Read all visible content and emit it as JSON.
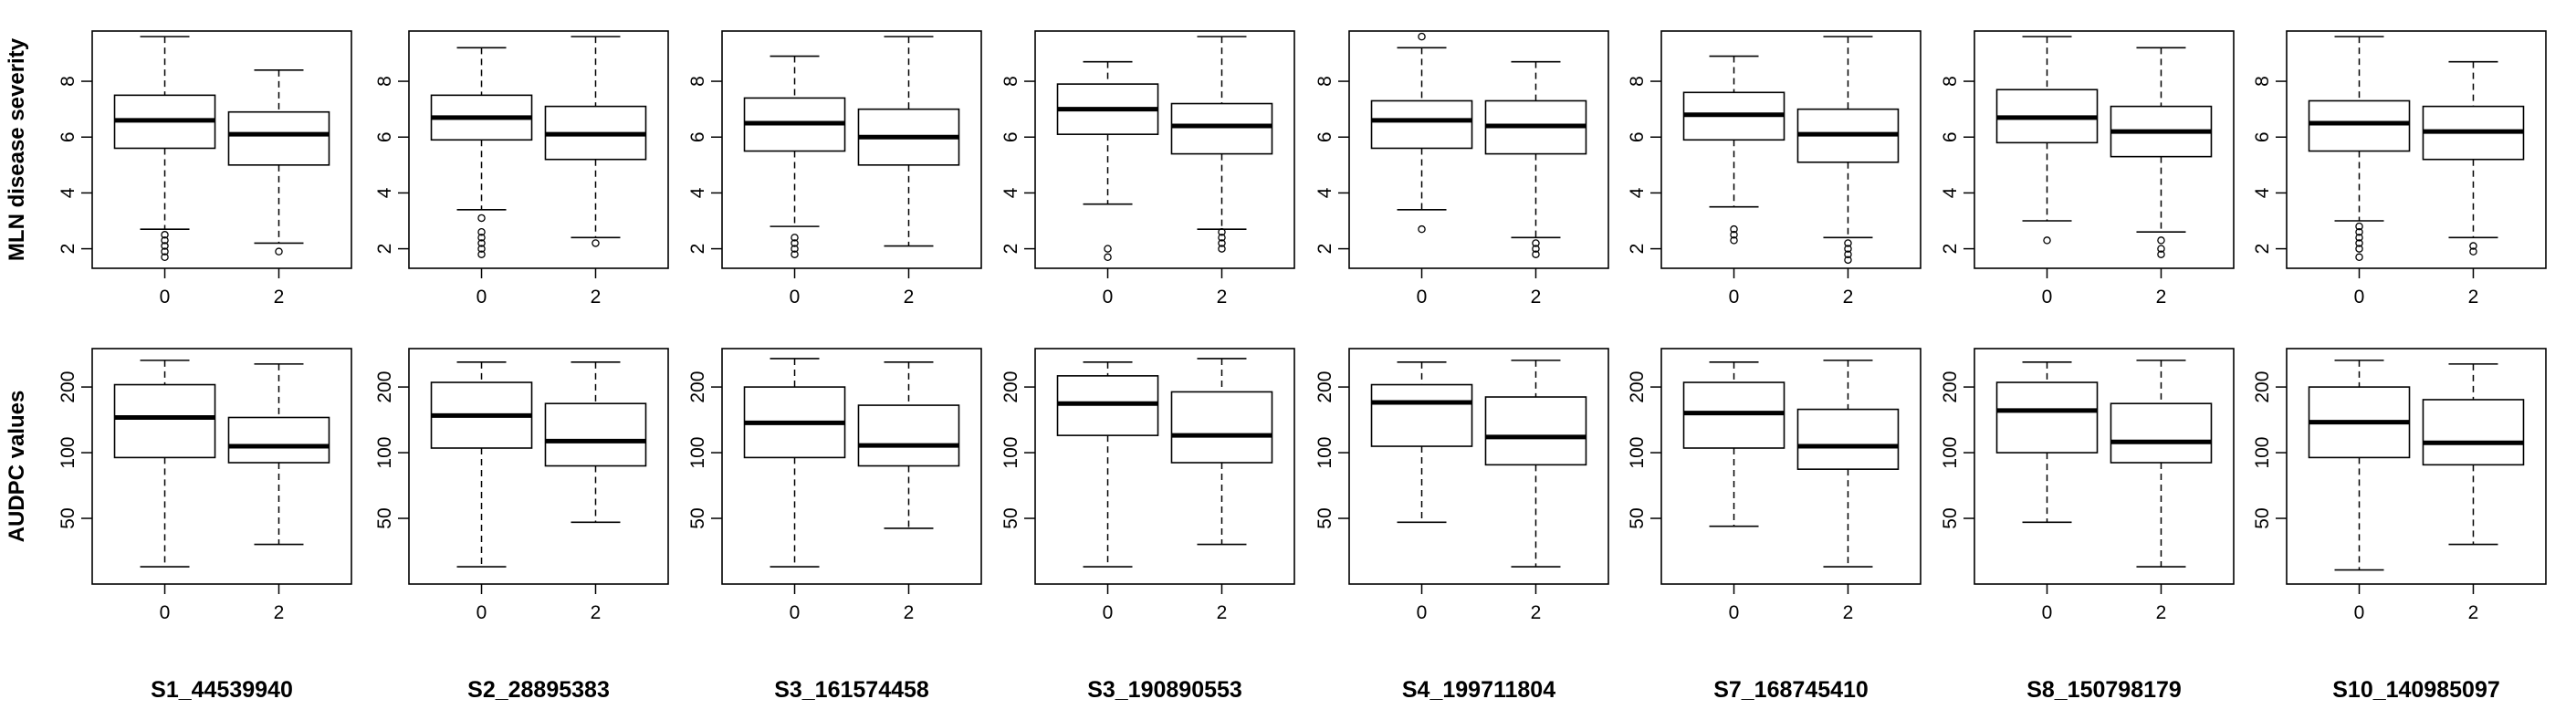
{
  "chart_data": {
    "type": "boxplot",
    "categories": [
      "0",
      "2"
    ],
    "row_labels": [
      "MLN disease severity",
      "AUDPC values"
    ],
    "markers": [
      "S1_44539940",
      "S2_28895383",
      "S3_161574458",
      "S3_190890553",
      "S4_199711804",
      "S7_168745410",
      "S8_150798179",
      "S10_140985097"
    ],
    "rows": [
      {
        "ylim": [
          1.3,
          9.8
        ],
        "ticks": [
          2,
          4,
          6,
          8
        ],
        "tick_labels": [
          "2",
          "4",
          "6",
          "8"
        ],
        "panels": [
          {
            "boxes": [
              {
                "min": 2.7,
                "q1": 5.6,
                "median": 6.6,
                "q3": 7.5,
                "max": 9.6,
                "outliers": [
                  2.5,
                  2.3,
                  2.1,
                  1.9,
                  1.7
                ]
              },
              {
                "min": 2.2,
                "q1": 5.0,
                "median": 6.1,
                "q3": 6.9,
                "max": 8.4,
                "outliers": [
                  1.9
                ]
              }
            ]
          },
          {
            "boxes": [
              {
                "min": 3.4,
                "q1": 5.9,
                "median": 6.7,
                "q3": 7.5,
                "max": 9.2,
                "outliers": [
                  3.1,
                  2.6,
                  2.4,
                  2.2,
                  2.0,
                  1.8
                ]
              },
              {
                "min": 2.4,
                "q1": 5.2,
                "median": 6.1,
                "q3": 7.1,
                "max": 9.6,
                "outliers": [
                  2.2
                ]
              }
            ]
          },
          {
            "boxes": [
              {
                "min": 2.8,
                "q1": 5.5,
                "median": 6.5,
                "q3": 7.4,
                "max": 8.9,
                "outliers": [
                  2.4,
                  2.2,
                  2.0,
                  1.8
                ]
              },
              {
                "min": 2.1,
                "q1": 5.0,
                "median": 6.0,
                "q3": 7.0,
                "max": 9.6,
                "outliers": []
              }
            ]
          },
          {
            "boxes": [
              {
                "min": 3.6,
                "q1": 6.1,
                "median": 7.0,
                "q3": 7.9,
                "max": 8.7,
                "outliers": [
                  2.0,
                  1.7
                ]
              },
              {
                "min": 2.7,
                "q1": 5.4,
                "median": 6.4,
                "q3": 7.2,
                "max": 9.6,
                "outliers": [
                  2.6,
                  2.4,
                  2.2,
                  2.0
                ]
              }
            ]
          },
          {
            "boxes": [
              {
                "min": 3.4,
                "q1": 5.6,
                "median": 6.6,
                "q3": 7.3,
                "max": 9.2,
                "outliers": [
                  9.6,
                  2.7
                ]
              },
              {
                "min": 2.4,
                "q1": 5.4,
                "median": 6.4,
                "q3": 7.3,
                "max": 8.7,
                "outliers": [
                  2.2,
                  2.0,
                  1.8
                ]
              }
            ]
          },
          {
            "boxes": [
              {
                "min": 3.5,
                "q1": 5.9,
                "median": 6.8,
                "q3": 7.6,
                "max": 8.9,
                "outliers": [
                  2.7,
                  2.5,
                  2.3
                ]
              },
              {
                "min": 2.4,
                "q1": 5.1,
                "median": 6.1,
                "q3": 7.0,
                "max": 9.6,
                "outliers": [
                  2.2,
                  2.0,
                  1.8,
                  1.6
                ]
              }
            ]
          },
          {
            "boxes": [
              {
                "min": 3.0,
                "q1": 5.8,
                "median": 6.7,
                "q3": 7.7,
                "max": 9.6,
                "outliers": [
                  2.3
                ]
              },
              {
                "min": 2.6,
                "q1": 5.3,
                "median": 6.2,
                "q3": 7.1,
                "max": 9.2,
                "outliers": [
                  2.3,
                  2.0,
                  1.8
                ]
              }
            ]
          },
          {
            "boxes": [
              {
                "min": 3.0,
                "q1": 5.5,
                "median": 6.5,
                "q3": 7.3,
                "max": 9.6,
                "outliers": [
                  2.8,
                  2.6,
                  2.4,
                  2.2,
                  2.0,
                  1.7
                ]
              },
              {
                "min": 2.4,
                "q1": 5.2,
                "median": 6.2,
                "q3": 7.1,
                "max": 8.7,
                "outliers": [
                  2.1,
                  1.9
                ]
              }
            ]
          }
        ]
      },
      {
        "ylim": [
          25,
          300
        ],
        "scale": "log",
        "ticks": [
          50,
          100,
          200
        ],
        "tick_labels": [
          "50",
          "100",
          "200"
        ],
        "panels": [
          {
            "boxes": [
              {
                "min": 30,
                "q1": 95,
                "median": 145,
                "q3": 205,
                "max": 265,
                "outliers": []
              },
              {
                "min": 38,
                "q1": 90,
                "median": 107,
                "q3": 145,
                "max": 255,
                "outliers": []
              }
            ]
          },
          {
            "boxes": [
              {
                "min": 30,
                "q1": 105,
                "median": 148,
                "q3": 210,
                "max": 260,
                "outliers": []
              },
              {
                "min": 48,
                "q1": 87,
                "median": 113,
                "q3": 168,
                "max": 260,
                "outliers": []
              }
            ]
          },
          {
            "boxes": [
              {
                "min": 30,
                "q1": 95,
                "median": 137,
                "q3": 200,
                "max": 270,
                "outliers": []
              },
              {
                "min": 45,
                "q1": 87,
                "median": 108,
                "q3": 165,
                "max": 260,
                "outliers": []
              }
            ]
          },
          {
            "boxes": [
              {
                "min": 30,
                "q1": 120,
                "median": 168,
                "q3": 225,
                "max": 260,
                "outliers": []
              },
              {
                "min": 38,
                "q1": 90,
                "median": 120,
                "q3": 190,
                "max": 270,
                "outliers": []
              }
            ]
          },
          {
            "boxes": [
              {
                "min": 48,
                "q1": 107,
                "median": 170,
                "q3": 205,
                "max": 260,
                "outliers": []
              },
              {
                "min": 30,
                "q1": 88,
                "median": 118,
                "q3": 180,
                "max": 265,
                "outliers": []
              }
            ]
          },
          {
            "boxes": [
              {
                "min": 46,
                "q1": 105,
                "median": 152,
                "q3": 210,
                "max": 260,
                "outliers": []
              },
              {
                "min": 30,
                "q1": 84,
                "median": 107,
                "q3": 158,
                "max": 265,
                "outliers": []
              }
            ]
          },
          {
            "boxes": [
              {
                "min": 48,
                "q1": 100,
                "median": 156,
                "q3": 210,
                "max": 260,
                "outliers": []
              },
              {
                "min": 30,
                "q1": 90,
                "median": 112,
                "q3": 168,
                "max": 265,
                "outliers": []
              }
            ]
          },
          {
            "boxes": [
              {
                "min": 29,
                "q1": 95,
                "median": 138,
                "q3": 200,
                "max": 265,
                "outliers": []
              },
              {
                "min": 38,
                "q1": 88,
                "median": 111,
                "q3": 175,
                "max": 255,
                "outliers": []
              }
            ]
          }
        ]
      }
    ]
  }
}
